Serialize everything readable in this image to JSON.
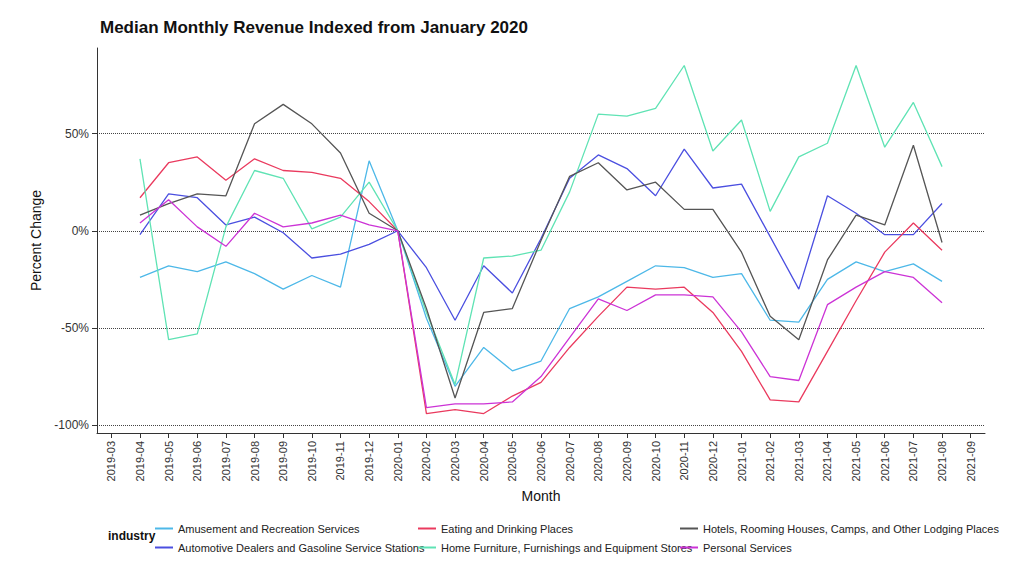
{
  "chart_data": {
    "type": "line",
    "title": "Median Monthly Revenue Indexed from January 2020",
    "x_label": "Month",
    "y_label": "Percent Change",
    "legend_title": "industry",
    "legend": "bottom",
    "grid": true,
    "categories": [
      "2019-03",
      "2019-04",
      "2019-05",
      "2019-06",
      "2019-07",
      "2019-08",
      "2019-09",
      "2019-10",
      "2019-11",
      "2019-12",
      "2020-01",
      "2020-02",
      "2020-03",
      "2020-04",
      "2020-05",
      "2020-06",
      "2020-07",
      "2020-08",
      "2020-09",
      "2020-10",
      "2020-11",
      "2020-12",
      "2021-01",
      "2021-02",
      "2021-03",
      "2021-04",
      "2021-05",
      "2021-06",
      "2021-07",
      "2021-08",
      "2021-09"
    ],
    "ylim": [
      -104,
      94
    ],
    "yticks": [
      {
        "value": -100,
        "label": "-100%"
      },
      {
        "value": -50,
        "label": "-50%"
      },
      {
        "value": 0,
        "label": "0%"
      },
      {
        "value": 50,
        "label": "50%"
      }
    ],
    "series": [
      {
        "name": "Amusement and Recreation Services",
        "color": "#4db8e8",
        "values": [
          null,
          -24,
          -18,
          -21,
          -16,
          -22,
          -30,
          -23,
          -29,
          36,
          0,
          -45,
          -80,
          -60,
          -72,
          -67,
          -40,
          -34,
          -26,
          -18,
          -19,
          -24,
          -22,
          -46,
          -47,
          -25,
          -16,
          -21,
          -17,
          -26,
          null
        ]
      },
      {
        "name": "Automotive Dealers and Gasoline Service Stations",
        "color": "#4b4fe0",
        "values": [
          null,
          -2,
          19,
          17,
          3,
          7,
          -1,
          -14,
          -12,
          -7,
          0,
          -19,
          -46,
          -18,
          -32,
          -4,
          27,
          39,
          32,
          18,
          42,
          22,
          24,
          -3,
          -30,
          18,
          9,
          -2,
          -2,
          14,
          null
        ]
      },
      {
        "name": "Eating and Drinking Places",
        "color": "#ea3a5e",
        "values": [
          null,
          17,
          35,
          38,
          26,
          37,
          31,
          30,
          27,
          15,
          0,
          -94,
          -92,
          -94,
          -85,
          -78,
          -60,
          -44,
          -29,
          -30,
          -29,
          -42,
          -62,
          -87,
          -88,
          -62,
          -36,
          -11,
          4,
          -10,
          null
        ]
      },
      {
        "name": "Home Furniture, Furnishings and Equipment Stores",
        "color": "#5fe3b4",
        "values": [
          null,
          37,
          -56,
          -53,
          2,
          31,
          27,
          1,
          7,
          25,
          0,
          -42,
          -79,
          -14,
          -13,
          -10,
          20,
          60,
          59,
          63,
          85,
          41,
          57,
          10,
          38,
          45,
          85,
          43,
          66,
          33,
          null
        ]
      },
      {
        "name": "Hotels, Rooming Houses, Camps, and Other Lodging Places",
        "color": "#555555",
        "values": [
          null,
          8,
          14,
          19,
          18,
          55,
          65,
          55,
          40,
          9,
          0,
          -40,
          -86,
          -42,
          -40,
          -5,
          28,
          35,
          21,
          25,
          11,
          11,
          -11,
          -44,
          -56,
          -15,
          8,
          3,
          44,
          -6,
          null
        ]
      },
      {
        "name": "Personal Services",
        "color": "#cc33d6",
        "values": [
          null,
          4,
          16,
          2,
          -8,
          9,
          2,
          4,
          8,
          3,
          0,
          -91,
          -89,
          -89,
          -88,
          -75,
          -55,
          -35,
          -41,
          -33,
          -33,
          -34,
          -52,
          -75,
          -77,
          -38,
          -29,
          -21,
          -24,
          -37,
          null
        ]
      }
    ]
  }
}
